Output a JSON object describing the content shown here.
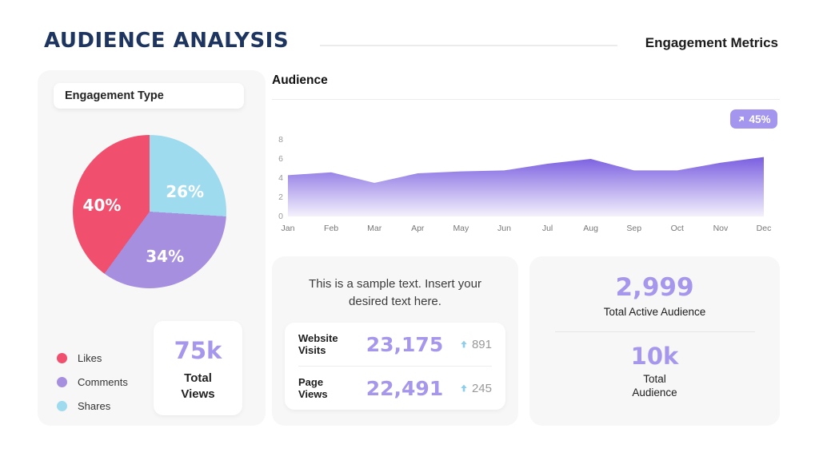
{
  "header": {
    "title": "AUDIENCE ANALYSIS",
    "subtitle": "Engagement Metrics"
  },
  "engagement": {
    "title": "Engagement Type",
    "legend": [
      {
        "label": "Likes",
        "color": "#f0506e"
      },
      {
        "label": "Comments",
        "color": "#a78fe0"
      },
      {
        "label": "Shares",
        "color": "#9fdbee"
      }
    ],
    "total_views": {
      "value": "75k",
      "label_line1": "Total",
      "label_line2": "Views"
    }
  },
  "audience_section": {
    "title": "Audience",
    "badge": {
      "label": "45%",
      "color": "#a495ee",
      "icon": "arrow-up-right"
    }
  },
  "sample_card": {
    "text": "This is a sample text. Insert your desired text here.",
    "delta_color": "#8bcdea",
    "stats": [
      {
        "label_line1": "Website",
        "label_line2": "Visits",
        "value": "23,175",
        "delta": "891"
      },
      {
        "label_line1": "Page",
        "label_line2": "Views",
        "value": "22,491",
        "delta": "245"
      }
    ]
  },
  "totals_card": {
    "active": {
      "value": "2,999",
      "label": "Total Active Audience"
    },
    "total": {
      "value": "10k",
      "label_line1": "Total",
      "label_line2": "Audience"
    }
  },
  "chart_data": [
    {
      "type": "pie",
      "title": "Engagement Type",
      "labels": [
        "Shares",
        "Comments",
        "Likes"
      ],
      "values": [
        26,
        34,
        40
      ],
      "colors": [
        "#9fdbee",
        "#a78fe0",
        "#f0506e"
      ],
      "data_labels": [
        "26%",
        "34%",
        "40%"
      ],
      "start_angle_deg": 0,
      "direction": "clockwise",
      "legend_position": "bottom-left"
    },
    {
      "type": "area",
      "title": "Audience",
      "categories": [
        "Jan",
        "Feb",
        "Mar",
        "Apr",
        "May",
        "Jun",
        "Jul",
        "Aug",
        "Sep",
        "Oct",
        "Nov",
        "Dec"
      ],
      "values": [
        4.3,
        4.6,
        3.5,
        4.5,
        4.7,
        4.8,
        5.5,
        6.0,
        4.8,
        4.8,
        5.6,
        6.2
      ],
      "ylim": [
        0,
        8
      ],
      "yticks": [
        0,
        2,
        4,
        6,
        8
      ],
      "grid": false,
      "annotation": "45%",
      "fill_gradient_top": "#7a5fe0",
      "fill_gradient_bottom": "#f4f1fc"
    }
  ]
}
